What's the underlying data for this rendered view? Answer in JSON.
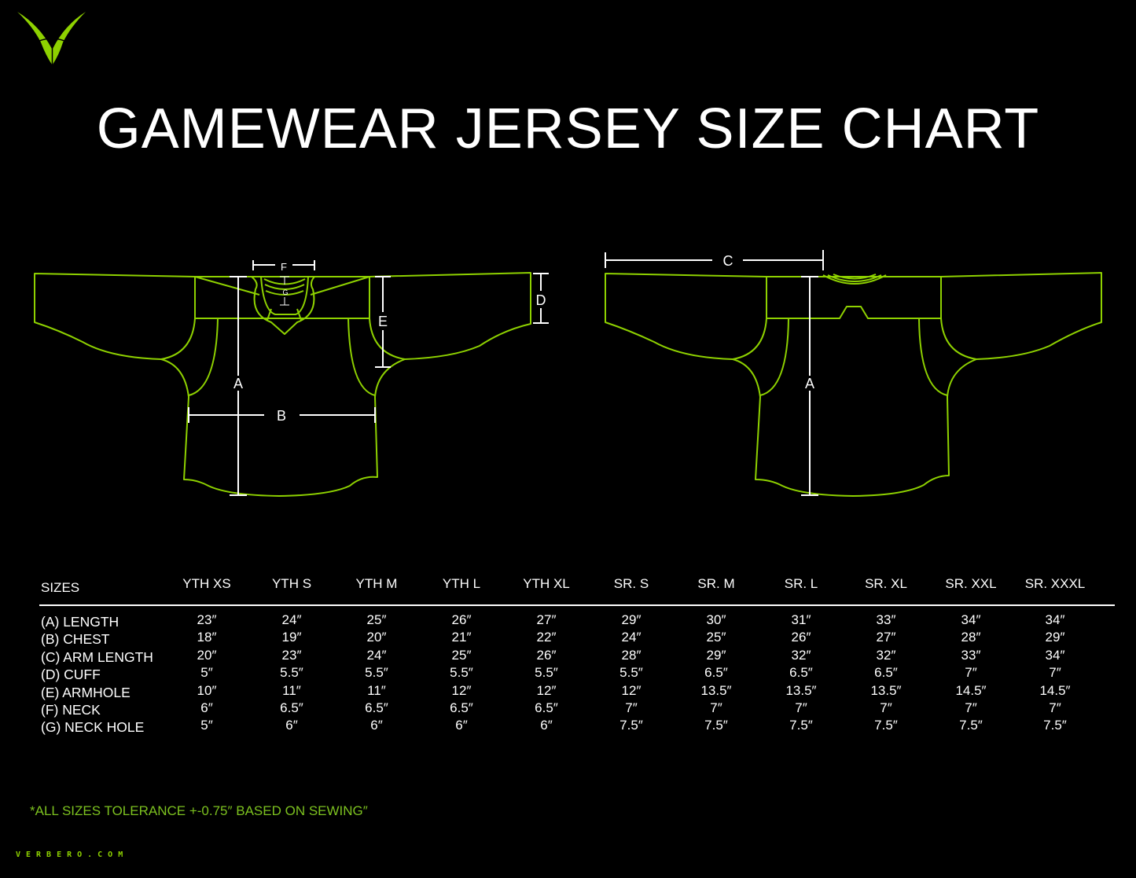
{
  "brand": {
    "logo": "verbero-v-logo",
    "website": "VERBERO.COM",
    "accent_color": "#8ed100"
  },
  "title": "GAMEWEAR JERSEY SIZE CHART",
  "diagram": {
    "front_labels": {
      "a": "A",
      "b": "B",
      "d": "D",
      "e": "E",
      "f": "F",
      "g": "G"
    },
    "back_labels": {
      "a": "A",
      "c": "C"
    }
  },
  "table": {
    "header_label": "SIZES",
    "sizes": [
      "YTH XS",
      "YTH S",
      "YTH M",
      "YTH L",
      "YTH XL",
      "SR. S",
      "SR. M",
      "SR. L",
      "SR. XL",
      "SR. XXL",
      "SR. XXXL"
    ],
    "rows": [
      {
        "label": "(A) LENGTH",
        "values": [
          "23″",
          "24″",
          "25″",
          "26″",
          "27″",
          "29″",
          "30″",
          "31″",
          "33″",
          "34″",
          "34″"
        ]
      },
      {
        "label": "(B) CHEST",
        "values": [
          "18″",
          "19″",
          "20″",
          "21″",
          "22″",
          "24″",
          "25″",
          "26″",
          "27″",
          "28″",
          "29″"
        ]
      },
      {
        "label": "(C) ARM LENGTH",
        "values": [
          "20″",
          "23″",
          "24″",
          "25″",
          "26″",
          "28″",
          "29″",
          "32″",
          "32″",
          "33″",
          "34″"
        ]
      },
      {
        "label": "(D) CUFF",
        "values": [
          "5″",
          "5.5″",
          "5.5″",
          "5.5″",
          "5.5″",
          "5.5″",
          "6.5″",
          "6.5″",
          "6.5″",
          "7″",
          "7″"
        ]
      },
      {
        "label": "(E) ARMHOLE",
        "values": [
          "10″",
          "11″",
          "11″",
          "12″",
          "12″",
          "12″",
          "13.5″",
          "13.5″",
          "13.5″",
          "14.5″",
          "14.5″"
        ]
      },
      {
        "label": "(F) NECK",
        "values": [
          "6″",
          "6.5″",
          "6.5″",
          "6.5″",
          "6.5″",
          "7″",
          "7″",
          "7″",
          "7″",
          "7″",
          "7″"
        ]
      },
      {
        "label": "(G) NECK HOLE",
        "values": [
          "5″",
          "6″",
          "6″",
          "6″",
          "6″",
          "7.5″",
          "7.5″",
          "7.5″",
          "7.5″",
          "7.5″",
          "7.5″"
        ]
      }
    ]
  },
  "footnote": "*ALL SIZES TOLERANCE +-0.75″ BASED ON SEWING″"
}
